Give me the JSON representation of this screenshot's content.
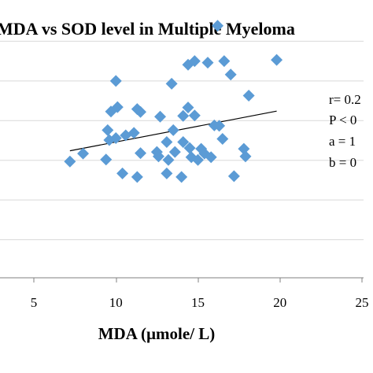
{
  "chart_data": {
    "type": "scatter",
    "title": "MDA vs SOD level in Multiple Myeloma",
    "xlabel": "MDA (µmole/ L)",
    "ylabel": "",
    "xlim": [
      0,
      25
    ],
    "x_ticks": [
      5,
      10,
      15,
      20,
      25
    ],
    "x_tick_labels": [
      "5",
      "10",
      "15",
      "20",
      "25"
    ],
    "ylim": [
      0,
      0.7
    ],
    "y_gridlines": [
      0.1,
      0.2,
      0.3,
      0.4,
      0.5,
      0.6
    ],
    "grid": true,
    "stats": [
      "r= 0.2",
      "P < 0",
      "a = 1",
      "b = 0"
    ],
    "trendline": {
      "x": [
        7.2,
        19.8
      ],
      "y": [
        0.32,
        0.42
      ]
    },
    "series": [
      {
        "color": "#5b9bd5",
        "points": [
          [
            7.2,
            0.293
          ],
          [
            8.0,
            0.313
          ],
          [
            9.4,
            0.298
          ],
          [
            9.5,
            0.372
          ],
          [
            9.6,
            0.347
          ],
          [
            9.7,
            0.419
          ],
          [
            10.1,
            0.43
          ],
          [
            10.0,
            0.496
          ],
          [
            10.0,
            0.352
          ],
          [
            10.4,
            0.263
          ],
          [
            10.6,
            0.359
          ],
          [
            11.1,
            0.365
          ],
          [
            11.3,
            0.425
          ],
          [
            11.3,
            0.254
          ],
          [
            11.5,
            0.418
          ],
          [
            11.5,
            0.314
          ],
          [
            12.5,
            0.317
          ],
          [
            12.6,
            0.306
          ],
          [
            12.7,
            0.406
          ],
          [
            13.1,
            0.342
          ],
          [
            13.2,
            0.297
          ],
          [
            13.1,
            0.263
          ],
          [
            13.4,
            0.489
          ],
          [
            13.5,
            0.372
          ],
          [
            13.6,
            0.317
          ],
          [
            14.0,
            0.254
          ],
          [
            14.1,
            0.408
          ],
          [
            14.1,
            0.342
          ],
          [
            14.4,
            0.537
          ],
          [
            14.4,
            0.429
          ],
          [
            14.5,
            0.327
          ],
          [
            14.6,
            0.304
          ],
          [
            14.8,
            0.409
          ],
          [
            14.8,
            0.546
          ],
          [
            15.0,
            0.297
          ],
          [
            15.2,
            0.325
          ],
          [
            15.4,
            0.313
          ],
          [
            15.6,
            0.542
          ],
          [
            15.8,
            0.304
          ],
          [
            16.0,
            0.384
          ],
          [
            16.2,
            0.635
          ],
          [
            16.3,
            0.383
          ],
          [
            16.5,
            0.35
          ],
          [
            16.6,
            0.546
          ],
          [
            17.0,
            0.512
          ],
          [
            17.2,
            0.256
          ],
          [
            17.8,
            0.325
          ],
          [
            17.9,
            0.306
          ],
          [
            18.1,
            0.459
          ],
          [
            19.8,
            0.549
          ]
        ]
      }
    ]
  }
}
